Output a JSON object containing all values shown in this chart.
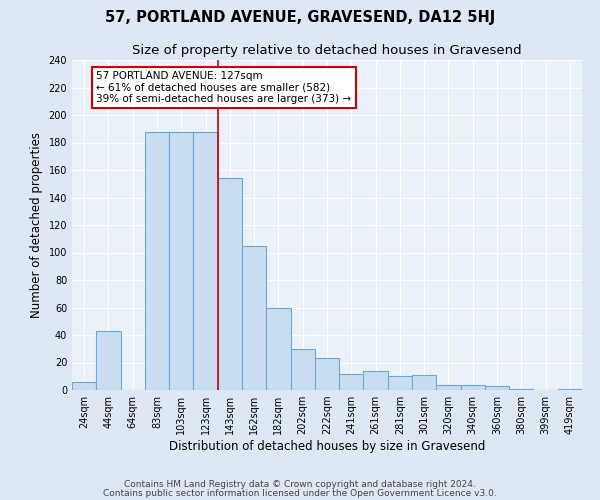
{
  "title": "57, PORTLAND AVENUE, GRAVESEND, DA12 5HJ",
  "subtitle": "Size of property relative to detached houses in Gravesend",
  "xlabel": "Distribution of detached houses by size in Gravesend",
  "ylabel": "Number of detached properties",
  "bar_labels": [
    "24sqm",
    "44sqm",
    "64sqm",
    "83sqm",
    "103sqm",
    "123sqm",
    "143sqm",
    "162sqm",
    "182sqm",
    "202sqm",
    "222sqm",
    "241sqm",
    "261sqm",
    "281sqm",
    "301sqm",
    "320sqm",
    "340sqm",
    "360sqm",
    "380sqm",
    "399sqm",
    "419sqm"
  ],
  "bar_heights": [
    6,
    43,
    0,
    188,
    188,
    188,
    154,
    105,
    60,
    30,
    23,
    12,
    14,
    10,
    11,
    4,
    4,
    3,
    1,
    0,
    1
  ],
  "bar_color": "#c9ddf0",
  "bar_edge_color": "#6aaad4",
  "bar_edge_width": 0.8,
  "red_line_index": 6,
  "annotation_title": "57 PORTLAND AVENUE: 127sqm",
  "annotation_line1": "← 61% of detached houses are smaller (582)",
  "annotation_line2": "39% of semi-detached houses are larger (373) →",
  "annotation_box_facecolor": "#ffffff",
  "annotation_box_edgecolor": "#cc0000",
  "ylim": [
    0,
    240
  ],
  "yticks": [
    0,
    20,
    40,
    60,
    80,
    100,
    120,
    140,
    160,
    180,
    200,
    220,
    240
  ],
  "footer1": "Contains HM Land Registry data © Crown copyright and database right 2024.",
  "footer2": "Contains public sector information licensed under the Open Government Licence v3.0.",
  "bg_color": "#dde8f4",
  "plot_bg_color": "#eaf1f8",
  "grid_color": "#ffffff",
  "title_fontsize": 10.5,
  "subtitle_fontsize": 9.5,
  "axis_label_fontsize": 8.5,
  "tick_fontsize": 7,
  "footer_fontsize": 6.5,
  "annotation_fontsize": 7.5
}
